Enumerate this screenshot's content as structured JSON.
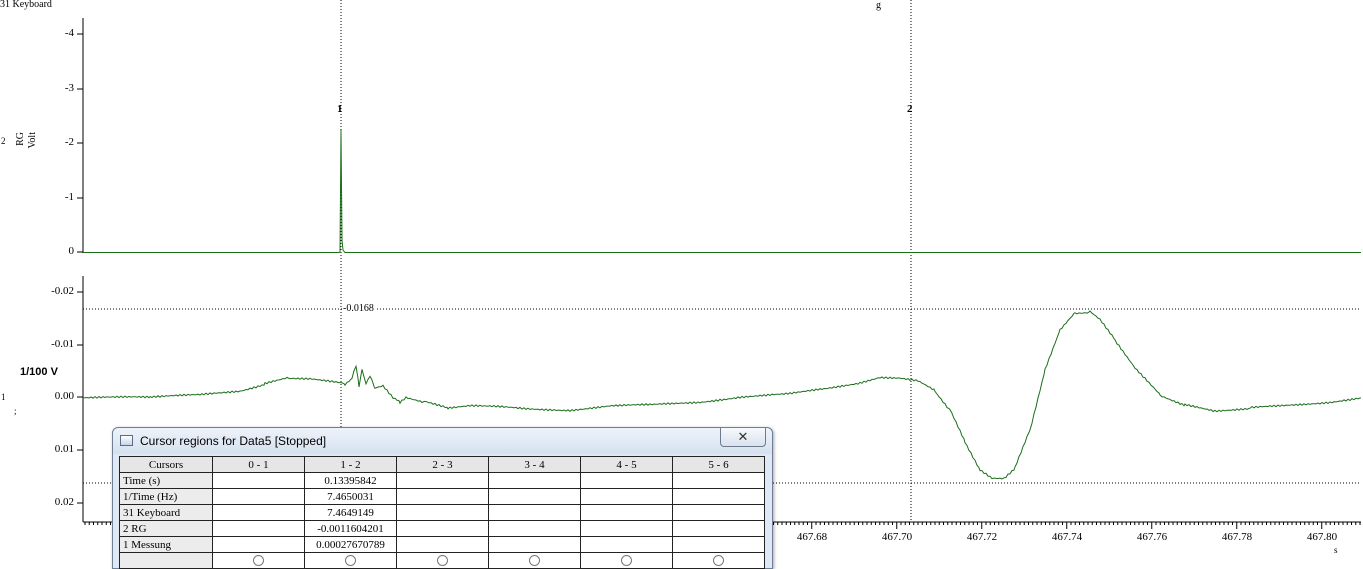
{
  "header": {
    "channel_label": "31 Keyboard",
    "g_mark": "g"
  },
  "top_axis": {
    "channel_number": "2",
    "label_name": "RG",
    "label_unit": "Volt",
    "ticks": [
      "-4",
      "-3",
      "-2",
      "-1",
      "0"
    ]
  },
  "bottom_axis": {
    "channel_number": "1",
    "channel_sub": ";",
    "unit": "1/100 V",
    "ticks": [
      "-0.02",
      "-0.01",
      "0.00",
      "0.01",
      "0.02"
    ]
  },
  "cursors": {
    "c1": "1",
    "c2": "2",
    "level_value": "-0.0168"
  },
  "x_axis": {
    "unit": "s",
    "ticks": [
      "467.68",
      "467.70",
      "467.72",
      "467.74",
      "467.76",
      "467.78",
      "467.80"
    ]
  },
  "colors": {
    "trace": "#1a6e1a",
    "cursor_line": "#000000"
  },
  "dialog": {
    "title": "Cursor regions for Data5 [Stopped]",
    "close_glyph": "✕",
    "columns": [
      "Cursors",
      "0 - 1",
      "1 - 2",
      "2 - 3",
      "3 - 4",
      "4 - 5",
      "5 - 6"
    ],
    "rows": [
      {
        "label": "Time (s)",
        "values": [
          "",
          "0.13395842",
          "",
          "",
          "",
          ""
        ]
      },
      {
        "label": "1/Time (Hz)",
        "values": [
          "",
          "7.4650031",
          "",
          "",
          "",
          ""
        ]
      },
      {
        "label": "31 Keyboard",
        "values": [
          "",
          "7.4649149",
          "",
          "",
          "",
          ""
        ]
      },
      {
        "label": "2 RG",
        "values": [
          "",
          "-0.0011604201",
          "",
          "",
          "",
          ""
        ]
      },
      {
        "label": "1 Messung",
        "values": [
          "",
          "0.00027670789",
          "",
          "",
          "",
          ""
        ]
      }
    ]
  }
}
